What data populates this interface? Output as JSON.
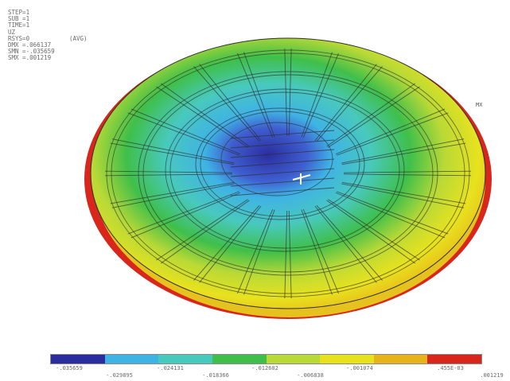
{
  "info_lines": [
    "STEP=1",
    "SUB =1",
    "TIME=1",
    "UZ",
    "RSYS=0",
    "DMX =.066137",
    "SMN =-.035659",
    "SMX =.001219"
  ],
  "info_result": "(AVG)",
  "max_marker": "MX",
  "legend": {
    "colors": [
      "#2b2d9e",
      "#3fb3e4",
      "#48c9bd",
      "#3fbf4a",
      "#b9d936",
      "#e8e21e",
      "#e8b21b",
      "#d9261c"
    ],
    "upper_labels": [
      "-.035659",
      "-.024131",
      "-.012602",
      "-.001074",
      ".455E-03"
    ],
    "lower_labels": [
      "-.029895",
      "-.018366",
      "-.006838",
      ".001219"
    ]
  },
  "colors": {
    "edge_red": "#d9261c",
    "mesh_line": "#2e2e2e"
  }
}
